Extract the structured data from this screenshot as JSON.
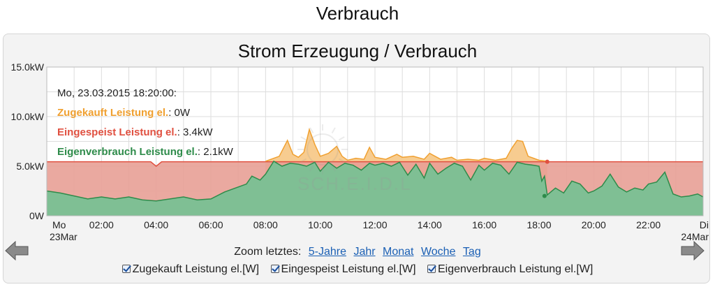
{
  "page": {
    "title": "Verbrauch"
  },
  "chart_data": {
    "type": "area",
    "title": "Strom Erzeugung / Verbrauch",
    "x_unit": "hours since Mo 23Mar 00:00",
    "xlim": [
      0,
      24
    ],
    "ylim": [
      0,
      15
    ],
    "y_ticks": [
      {
        "value": 0,
        "label": "0W"
      },
      {
        "value": 5,
        "label": "5.0kW"
      },
      {
        "value": 10,
        "label": "10.0kW"
      },
      {
        "value": 15,
        "label": "15.0kW"
      }
    ],
    "x_ticks": [
      {
        "value": 0,
        "label": "Mo",
        "sub": "23Mar"
      },
      {
        "value": 2,
        "label": "02:00"
      },
      {
        "value": 4,
        "label": "04:00"
      },
      {
        "value": 6,
        "label": "06:00"
      },
      {
        "value": 8,
        "label": "08:00"
      },
      {
        "value": 10,
        "label": "10:00"
      },
      {
        "value": 12,
        "label": "12:00"
      },
      {
        "value": 14,
        "label": "14:00"
      },
      {
        "value": 16,
        "label": "16:00"
      },
      {
        "value": 18,
        "label": "18:00"
      },
      {
        "value": 20,
        "label": "20:00"
      },
      {
        "value": 22,
        "label": "22:00"
      },
      {
        "value": 24,
        "label": "Di",
        "sub": "24Mar"
      }
    ],
    "grid": true,
    "series": [
      {
        "name": "Zugekauft Leistung el.",
        "color": "#f0a030",
        "fill": "#f7c98a",
        "stack_top": true,
        "x": [
          8.0,
          8.5,
          8.8,
          9.0,
          9.2,
          9.4,
          9.6,
          9.8,
          10.0,
          10.3,
          10.6,
          10.8,
          11.0,
          11.3,
          11.6,
          11.8,
          12.0,
          12.4,
          12.8,
          13.0,
          13.4,
          13.8,
          14.0,
          14.4,
          14.8,
          15.0,
          15.4,
          15.8,
          16.0,
          16.4,
          16.8,
          17.0,
          17.2,
          17.4,
          17.6,
          17.8,
          18.0,
          18.3
        ],
        "values": [
          5.5,
          6.0,
          7.6,
          6.2,
          5.9,
          6.4,
          8.7,
          7.2,
          6.0,
          6.3,
          7.0,
          6.0,
          5.6,
          5.8,
          5.7,
          6.9,
          5.9,
          5.7,
          6.2,
          5.9,
          6.0,
          5.7,
          6.3,
          5.7,
          5.9,
          5.6,
          5.7,
          5.6,
          5.8,
          5.6,
          5.8,
          6.8,
          7.6,
          7.5,
          6.0,
          5.8,
          5.6,
          5.5
        ]
      },
      {
        "name": "Eingespeist Leistung el.",
        "color": "#e05040",
        "fill": "#e8a096",
        "x": [
          0,
          3.8,
          4.0,
          4.2,
          18.3,
          24
        ],
        "values": [
          5.45,
          5.45,
          5.0,
          5.45,
          5.45,
          5.45
        ]
      },
      {
        "name": "Eigenverbrauch Leistung el.",
        "color": "#2e8b4a",
        "fill": "#7fbf94",
        "x": [
          0,
          0.5,
          1.0,
          1.5,
          2.0,
          2.5,
          3.0,
          3.5,
          4.0,
          4.5,
          5.0,
          5.5,
          6.0,
          6.5,
          7.0,
          7.3,
          7.5,
          7.8,
          8.0,
          8.3,
          8.6,
          8.9,
          9.2,
          9.5,
          9.8,
          10.0,
          10.3,
          10.6,
          10.9,
          11.2,
          11.5,
          11.8,
          12.0,
          12.3,
          12.6,
          12.9,
          13.2,
          13.5,
          13.8,
          14.0,
          14.3,
          14.6,
          14.9,
          15.2,
          15.5,
          15.8,
          16.0,
          16.3,
          16.6,
          16.9,
          17.2,
          17.5,
          17.8,
          18.0,
          18.1,
          18.2,
          18.3,
          18.6,
          18.9,
          19.2,
          19.5,
          19.8,
          20.0,
          20.3,
          20.6,
          20.9,
          21.2,
          21.5,
          21.8,
          22.0,
          22.3,
          22.6,
          22.9,
          23.2,
          23.5,
          23.8,
          24
        ],
        "values": [
          2.5,
          2.3,
          2.0,
          1.7,
          1.9,
          1.7,
          1.9,
          1.6,
          1.5,
          1.7,
          1.9,
          1.6,
          1.7,
          2.4,
          2.9,
          3.2,
          4.0,
          3.6,
          4.2,
          5.5,
          5.0,
          5.3,
          5.2,
          5.0,
          5.4,
          4.5,
          5.4,
          4.8,
          5.3,
          5.1,
          4.6,
          5.3,
          5.1,
          5.3,
          5.0,
          5.4,
          4.1,
          5.2,
          3.8,
          5.3,
          4.2,
          4.8,
          5.3,
          5.0,
          3.6,
          5.1,
          4.6,
          5.3,
          5.1,
          4.2,
          5.4,
          5.2,
          5.1,
          5.0,
          3.5,
          4.0,
          2.1,
          2.8,
          2.3,
          3.5,
          3.2,
          2.3,
          2.5,
          3.0,
          4.2,
          2.9,
          2.4,
          2.8,
          2.6,
          3.2,
          3.4,
          4.4,
          2.2,
          1.9,
          2.0,
          2.2,
          1.9
        ]
      }
    ],
    "tooltip": {
      "title": "Mo, 23.03.2015 18:20:00:",
      "rows": [
        {
          "name": "Zugekauft Leistung el.",
          "value": "0W",
          "color": "#f0a030"
        },
        {
          "name": "Eingespeist Leistung el.",
          "value": "3.4kW",
          "color": "#e05040"
        },
        {
          "name": "Eigenverbrauch Leistung el.",
          "value": "2.1kW",
          "color": "#2e8b4a"
        }
      ],
      "marker_x": 18.3
    },
    "watermark": "SCH.E.I.D.L"
  },
  "zoom": {
    "label": "Zoom letztes:",
    "links": [
      "5-Jahre",
      "Jahr",
      "Monat",
      "Woche",
      "Tag"
    ]
  },
  "legend": {
    "items": [
      {
        "label": "Zugekauft Leistung el.[W]",
        "checked": true
      },
      {
        "label": "Eingespeist Leistung el.[W]",
        "checked": true
      },
      {
        "label": "Eigenverbrauch Leistung el.[W]",
        "checked": true
      }
    ]
  },
  "nav": {
    "prev_icon": "arrow-left-icon",
    "next_icon": "arrow-right-icon"
  }
}
